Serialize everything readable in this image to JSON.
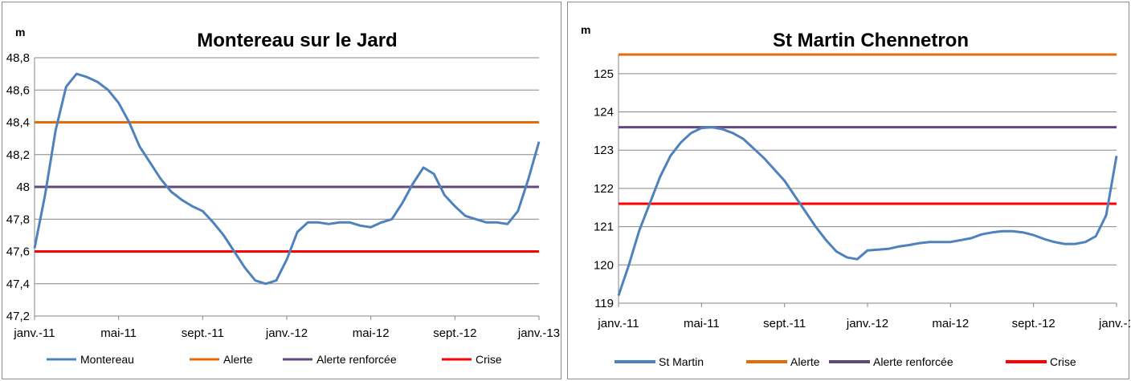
{
  "chart_data": [
    {
      "type": "line",
      "title": "Montereau sur le Jard",
      "ylabel": "m",
      "xlabel": "",
      "ylim": [
        47.2,
        48.8
      ],
      "yticks": [
        "47,2",
        "47,4",
        "47,6",
        "47,8",
        "48",
        "48,2",
        "48,4",
        "48,6",
        "48,8"
      ],
      "xticks": [
        "janv.-11",
        "mai-11",
        "sept.-11",
        "janv.-12",
        "mai-12",
        "sept.-12",
        "janv.-13"
      ],
      "grid": true,
      "legend_position": "bottom",
      "series": [
        {
          "name": "Montereau",
          "color": "#4f81bd",
          "points": [
            [
              "janv.-11",
              47.62
            ],
            [
              "janv.-11 (mi)",
              47.95
            ],
            [
              "févr.-11",
              48.35
            ],
            [
              "févr.-11 (mi)",
              48.62
            ],
            [
              "mars-11",
              48.7
            ],
            [
              "mars-11 (mi)",
              48.68
            ],
            [
              "avr.-11",
              48.65
            ],
            [
              "avr.-11 (mi)",
              48.6
            ],
            [
              "mai-11",
              48.52
            ],
            [
              "mai-11 (mi)",
              48.4
            ],
            [
              "juin-11",
              48.25
            ],
            [
              "juin-11 (mi)",
              48.15
            ],
            [
              "juil.-11",
              48.05
            ],
            [
              "juil.-11 (mi)",
              47.97
            ],
            [
              "août-11",
              47.92
            ],
            [
              "août-11 (mi)",
              47.88
            ],
            [
              "sept.-11",
              47.85
            ],
            [
              "sept.-11 (mi)",
              47.78
            ],
            [
              "oct.-11",
              47.7
            ],
            [
              "oct.-11 (mi)",
              47.6
            ],
            [
              "nov.-11",
              47.5
            ],
            [
              "nov.-11 (mi)",
              47.42
            ],
            [
              "déc.-11",
              47.4
            ],
            [
              "déc.-11 (mi)",
              47.42
            ],
            [
              "janv.-12",
              47.55
            ],
            [
              "janv.-12 (mi)",
              47.72
            ],
            [
              "févr.-12",
              47.78
            ],
            [
              "févr.-12 (mi)",
              47.78
            ],
            [
              "mars-12",
              47.77
            ],
            [
              "mars-12 (mi)",
              47.78
            ],
            [
              "avr.-12",
              47.78
            ],
            [
              "avr.-12 (mi)",
              47.76
            ],
            [
              "mai-12",
              47.75
            ],
            [
              "mai-12 (mi)",
              47.78
            ],
            [
              "juin-12",
              47.8
            ],
            [
              "juin-12 (mi)",
              47.9
            ],
            [
              "juil.-12",
              48.02
            ],
            [
              "juil.-12 (mi)",
              48.12
            ],
            [
              "août-12",
              48.08
            ],
            [
              "août-12 (mi)",
              47.95
            ],
            [
              "sept.-12",
              47.88
            ],
            [
              "sept.-12 (mi)",
              47.82
            ],
            [
              "oct.-12",
              47.8
            ],
            [
              "oct.-12 (mi)",
              47.78
            ],
            [
              "nov.-12",
              47.78
            ],
            [
              "nov.-12 (mi)",
              47.77
            ],
            [
              "déc.-12",
              47.85
            ],
            [
              "déc.-12 (mi)",
              48.05
            ],
            [
              "janv.-13",
              48.28
            ]
          ]
        },
        {
          "name": "Alerte",
          "color": "#e36c09",
          "value": 48.4
        },
        {
          "name": "Alerte renforcée",
          "color": "#604a7b",
          "value": 48.0
        },
        {
          "name": "Crise",
          "color": "#ff0000",
          "value": 47.6
        }
      ]
    },
    {
      "type": "line",
      "title": "St Martin Chennetron",
      "ylabel": "m",
      "xlabel": "",
      "ylim": [
        119,
        125.5
      ],
      "yticks": [
        "119",
        "120",
        "121",
        "122",
        "123",
        "124",
        "125"
      ],
      "xticks": [
        "janv.-11",
        "mai-11",
        "sept.-11",
        "janv.-12",
        "mai-12",
        "sept.-12",
        "janv.-1"
      ],
      "grid": true,
      "legend_position": "bottom",
      "series": [
        {
          "name": "St Martin",
          "color": "#4f81bd",
          "points": [
            [
              "janv.-11",
              119.2
            ],
            [
              "janv.-11 (mi)",
              120.0
            ],
            [
              "févr.-11",
              120.9
            ],
            [
              "févr.-11 (mi)",
              121.6
            ],
            [
              "mars-11",
              122.3
            ],
            [
              "mars-11 (mi)",
              122.85
            ],
            [
              "avr.-11",
              123.2
            ],
            [
              "avr.-11 (mi)",
              123.45
            ],
            [
              "mai-11",
              123.58
            ],
            [
              "mai-11 (mi)",
              123.6
            ],
            [
              "juin-11",
              123.55
            ],
            [
              "juin-11 (mi)",
              123.45
            ],
            [
              "juil.-11",
              123.3
            ],
            [
              "juil.-11 (mi)",
              123.05
            ],
            [
              "août-11",
              122.8
            ],
            [
              "août-11 (mi)",
              122.5
            ],
            [
              "sept.-11",
              122.2
            ],
            [
              "sept.-11 (mi)",
              121.8
            ],
            [
              "oct.-11",
              121.4
            ],
            [
              "oct.-11 (mi)",
              121.0
            ],
            [
              "nov.-11",
              120.65
            ],
            [
              "nov.-11 (mi)",
              120.35
            ],
            [
              "déc.-11",
              120.2
            ],
            [
              "déc.-11 (mi)",
              120.15
            ],
            [
              "janv.-12",
              120.38
            ],
            [
              "janv.-12 (mi)",
              120.4
            ],
            [
              "févr.-12",
              120.42
            ],
            [
              "févr.-12 (mi)",
              120.48
            ],
            [
              "mars-12",
              120.52
            ],
            [
              "mars-12 (mi)",
              120.57
            ],
            [
              "avr.-12",
              120.6
            ],
            [
              "avr.-12 (mi)",
              120.6
            ],
            [
              "mai-12",
              120.6
            ],
            [
              "mai-12 (mi)",
              120.65
            ],
            [
              "juin-12",
              120.7
            ],
            [
              "juin-12 (mi)",
              120.8
            ],
            [
              "juil.-12",
              120.85
            ],
            [
              "juil.-12 (mi)",
              120.88
            ],
            [
              "août-12",
              120.88
            ],
            [
              "août-12 (mi)",
              120.85
            ],
            [
              "sept.-12",
              120.78
            ],
            [
              "sept.-12 (mi)",
              120.68
            ],
            [
              "oct.-12",
              120.6
            ],
            [
              "oct.-12 (mi)",
              120.55
            ],
            [
              "nov.-12",
              120.55
            ],
            [
              "nov.-12 (mi)",
              120.6
            ],
            [
              "déc.-12",
              120.75
            ],
            [
              "déc.-12 (mi)",
              121.3
            ],
            [
              "janv.-13",
              122.85
            ]
          ]
        },
        {
          "name": "Alerte",
          "color": "#e36c09",
          "value": 125.5
        },
        {
          "name": "Alerte renforcée",
          "color": "#604a7b",
          "value": 123.6
        },
        {
          "name": "Crise",
          "color": "#ff0000",
          "value": 121.6
        }
      ]
    }
  ]
}
